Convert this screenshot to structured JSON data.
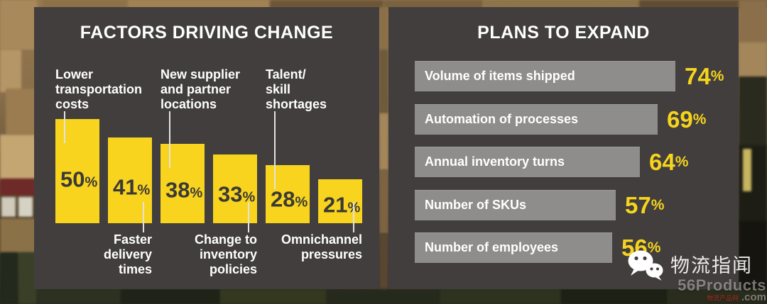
{
  "colors": {
    "panel_bg": "#413e3d",
    "accent_yellow": "#f8d41e",
    "percent_yellow": "#f6d41d",
    "hbar_gray": "#8f8d8c",
    "bar_value_text": "#3b3936",
    "text_white": "#ffffff"
  },
  "left_panel": {
    "title": "FACTORS DRIVING CHANGE"
  },
  "right_panel": {
    "title": "PLANS TO EXPAND"
  },
  "watermark": {
    "wechat_account": "物流指闻",
    "site_name": "56Products",
    "site_tld": ".com",
    "site_chinese": "物流产品网"
  },
  "chart_data": [
    {
      "type": "bar",
      "orientation": "vertical",
      "title": "FACTORS DRIVING CHANGE",
      "categories": [
        "Lower transportation costs",
        "Faster delivery times",
        "New supplier and partner locations",
        "Change to inventory policies",
        "Talent/skill shortages",
        "Omnichannel pressures"
      ],
      "values": [
        50,
        41,
        38,
        33,
        28,
        21
      ],
      "unit": "%",
      "ylim": [
        0,
        50
      ],
      "grid": false,
      "bar_color": "#f8d41e",
      "value_label_color": "#3b3936",
      "label_positions": [
        "above",
        "below",
        "above",
        "below",
        "above",
        "below"
      ],
      "label_lines": [
        "Lower\ntransportation\ncosts",
        "Faster\ndelivery\ntimes",
        "New supplier\nand partner\nlocations",
        "Change to\ninventory\npolicies",
        "Talent/\nskill\nshortages",
        "Omnichannel\npressures"
      ]
    },
    {
      "type": "bar",
      "orientation": "horizontal",
      "title": "PLANS TO EXPAND",
      "categories": [
        "Volume of items shipped",
        "Automation of processes",
        "Annual inventory turns",
        "Number of SKUs",
        "Number of employees"
      ],
      "values": [
        74,
        69,
        64,
        57,
        56
      ],
      "unit": "%",
      "xlim": [
        0,
        100
      ],
      "grid": false,
      "bar_color": "#8f8d8c",
      "value_label_color": "#f6d41d"
    }
  ]
}
